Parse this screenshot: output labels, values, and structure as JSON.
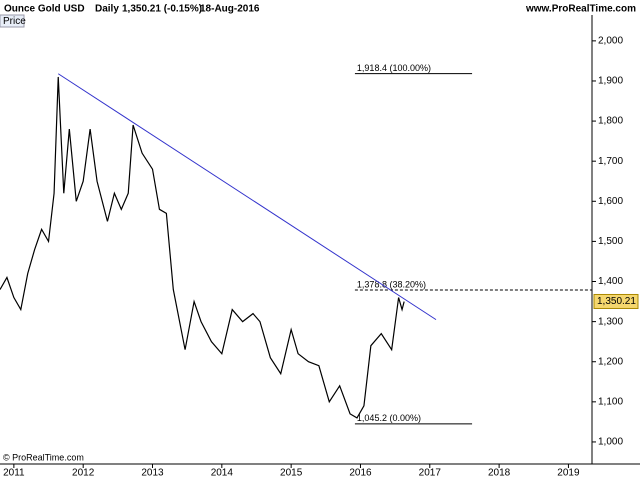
{
  "chart_data": {
    "type": "line",
    "title": "Ounce Gold USD",
    "period": "Daily",
    "quote": "1,350.21 (-0.15%)",
    "date": "18-Aug-2016",
    "source": "www.ProRealTime.com",
    "panel_label": "Price",
    "copyright": "© ProRealTime.com",
    "x": [
      2010.8,
      2010.9,
      2011.0,
      2011.1,
      2011.2,
      2011.3,
      2011.4,
      2011.5,
      2011.58,
      2011.64,
      2011.72,
      2011.8,
      2011.9,
      2012.0,
      2012.1,
      2012.2,
      2012.35,
      2012.45,
      2012.55,
      2012.65,
      2012.72,
      2012.85,
      2013.0,
      2013.1,
      2013.2,
      2013.3,
      2013.47,
      2013.6,
      2013.7,
      2013.85,
      2014.0,
      2014.15,
      2014.3,
      2014.45,
      2014.55,
      2014.7,
      2014.85,
      2015.0,
      2015.1,
      2015.25,
      2015.4,
      2015.55,
      2015.7,
      2015.85,
      2015.95,
      2016.05,
      2016.15,
      2016.3,
      2016.45,
      2016.55,
      2016.6,
      2016.63
    ],
    "series": [
      {
        "name": "Price",
        "color": "#000000",
        "values": [
          1380,
          1410,
          1360,
          1330,
          1420,
          1480,
          1530,
          1500,
          1620,
          1910,
          1620,
          1780,
          1600,
          1650,
          1780,
          1650,
          1550,
          1620,
          1580,
          1620,
          1790,
          1720,
          1680,
          1580,
          1570,
          1380,
          1230,
          1350,
          1300,
          1250,
          1220,
          1330,
          1300,
          1320,
          1300,
          1210,
          1170,
          1280,
          1220,
          1200,
          1190,
          1100,
          1140,
          1070,
          1060,
          1090,
          1240,
          1270,
          1230,
          1360,
          1330,
          1350
        ]
      }
    ],
    "xlim": [
      2010.8,
      2019.34
    ],
    "xticks": [
      2011,
      2012,
      2013,
      2014,
      2015,
      2016,
      2017,
      2018,
      2019
    ],
    "ylim": [
      950,
      2057
    ],
    "yticks": [
      {
        "value": 1000,
        "label": "1,000"
      },
      {
        "value": 1100,
        "label": "1,100"
      },
      {
        "value": 1200,
        "label": "1,200"
      },
      {
        "value": 1300,
        "label": "1,300"
      },
      {
        "value": 1400,
        "label": "1,400"
      },
      {
        "value": 1500,
        "label": "1,500"
      },
      {
        "value": 1600,
        "label": "1,600"
      },
      {
        "value": 1700,
        "label": "1,700"
      },
      {
        "value": 1800,
        "label": "1,800"
      },
      {
        "value": 1900,
        "label": "1,900"
      },
      {
        "value": 2000,
        "label": "2,000"
      }
    ],
    "trend_line": {
      "x": [
        2011.64,
        2017.09
      ],
      "y": [
        1918,
        1305
      ],
      "color": "#3333cc"
    },
    "levels": [
      {
        "value": 1918.4,
        "label": "1,918.4 (100.00%)",
        "x": [
          2015.92,
          2017.61
        ],
        "dashed": false
      },
      {
        "value": 1378.8,
        "label": "1,378.8 (38.20%)",
        "x": [
          2015.92,
          2019.34
        ],
        "dashed": true
      },
      {
        "value": 1045.2,
        "label": "1,045.2 (0.00%)",
        "x": [
          2015.92,
          2017.61
        ],
        "dashed": false
      }
    ],
    "last": {
      "value": 1350.21,
      "label": "1,350.21",
      "color": "#f5d76e"
    }
  }
}
